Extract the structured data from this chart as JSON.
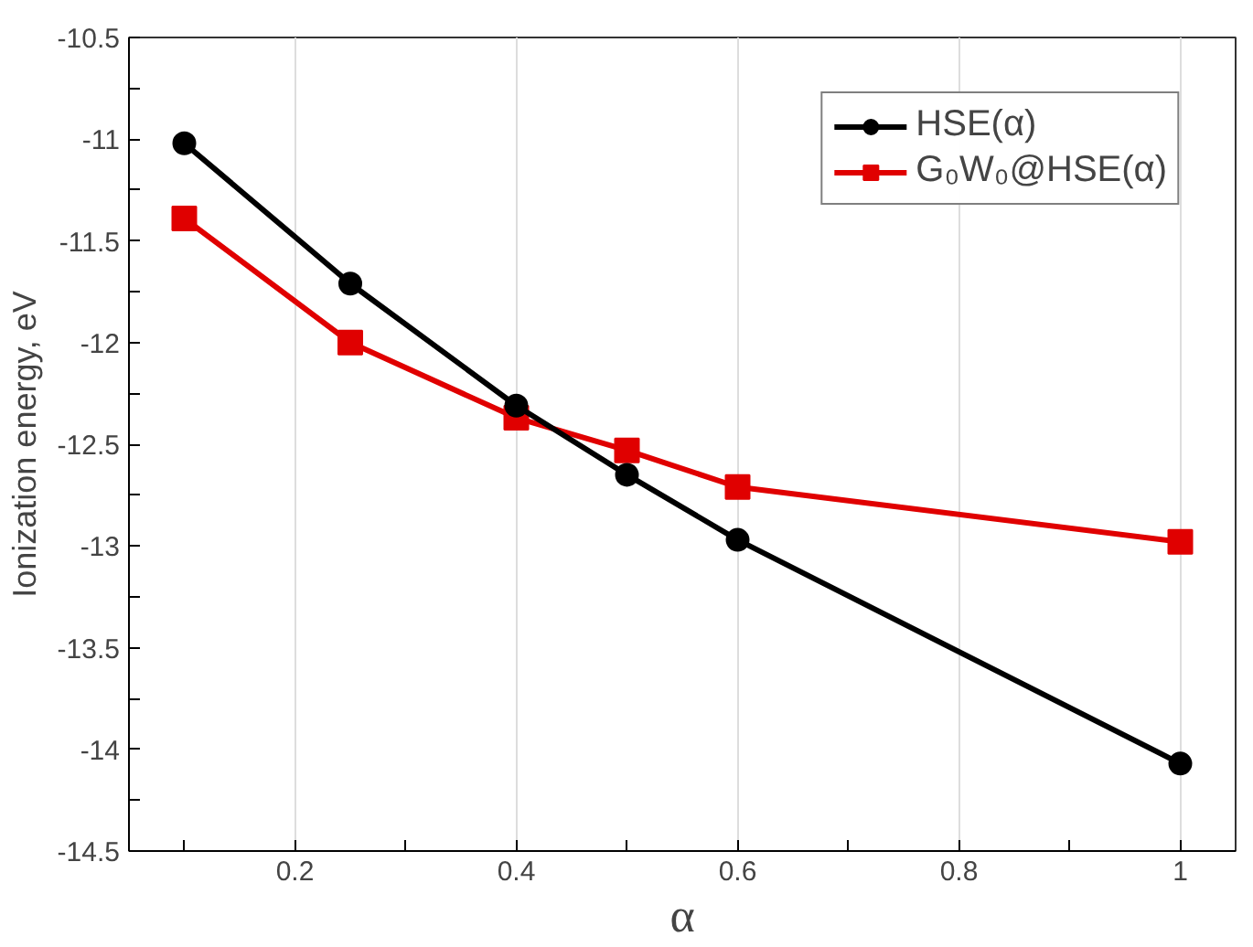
{
  "chart_data": {
    "type": "line",
    "xlabel": "α",
    "ylabel": "Ionization energy, eV",
    "x": [
      0.1,
      0.25,
      0.4,
      0.5,
      0.6,
      1
    ],
    "series": [
      {
        "name": "HSE(α)",
        "color": "#000000",
        "marker": "circle",
        "values": [
          -11.02,
          -11.71,
          -12.31,
          -12.65,
          -12.97,
          -14.07
        ]
      },
      {
        "name": "G₀W₀@HSE(α)",
        "color": "#e00000",
        "marker": "square",
        "values": [
          -11.39,
          -12.0,
          -12.37,
          -12.53,
          -12.71,
          -12.98
        ]
      }
    ],
    "xlim": [
      0.05,
      1.05
    ],
    "ylim": [
      -14.5,
      -10.5
    ],
    "xticks": [
      {
        "value": 0.1,
        "label": null
      },
      0.2,
      {
        "value": 0.3,
        "label": null
      },
      0.4,
      {
        "value": 0.5,
        "label": null
      },
      0.6,
      {
        "value": 0.7,
        "label": null
      },
      0.8,
      {
        "value": 0.9,
        "label": null
      },
      1
    ],
    "yticks": [
      -14.5,
      {
        "value": -14.25,
        "label": null
      },
      -14,
      {
        "value": -13.75,
        "label": null
      },
      -13.5,
      {
        "value": -13.25,
        "label": null
      },
      -13,
      {
        "value": -12.75,
        "label": null
      },
      -12.5,
      {
        "value": -12.25,
        "label": null
      },
      -12,
      {
        "value": -11.75,
        "label": null
      },
      -11.5,
      {
        "value": -11.25,
        "label": null
      },
      -11,
      {
        "value": -10.75,
        "label": null
      },
      -10.5
    ],
    "grid": "x",
    "legend": "top right",
    "line_style": "solid"
  }
}
